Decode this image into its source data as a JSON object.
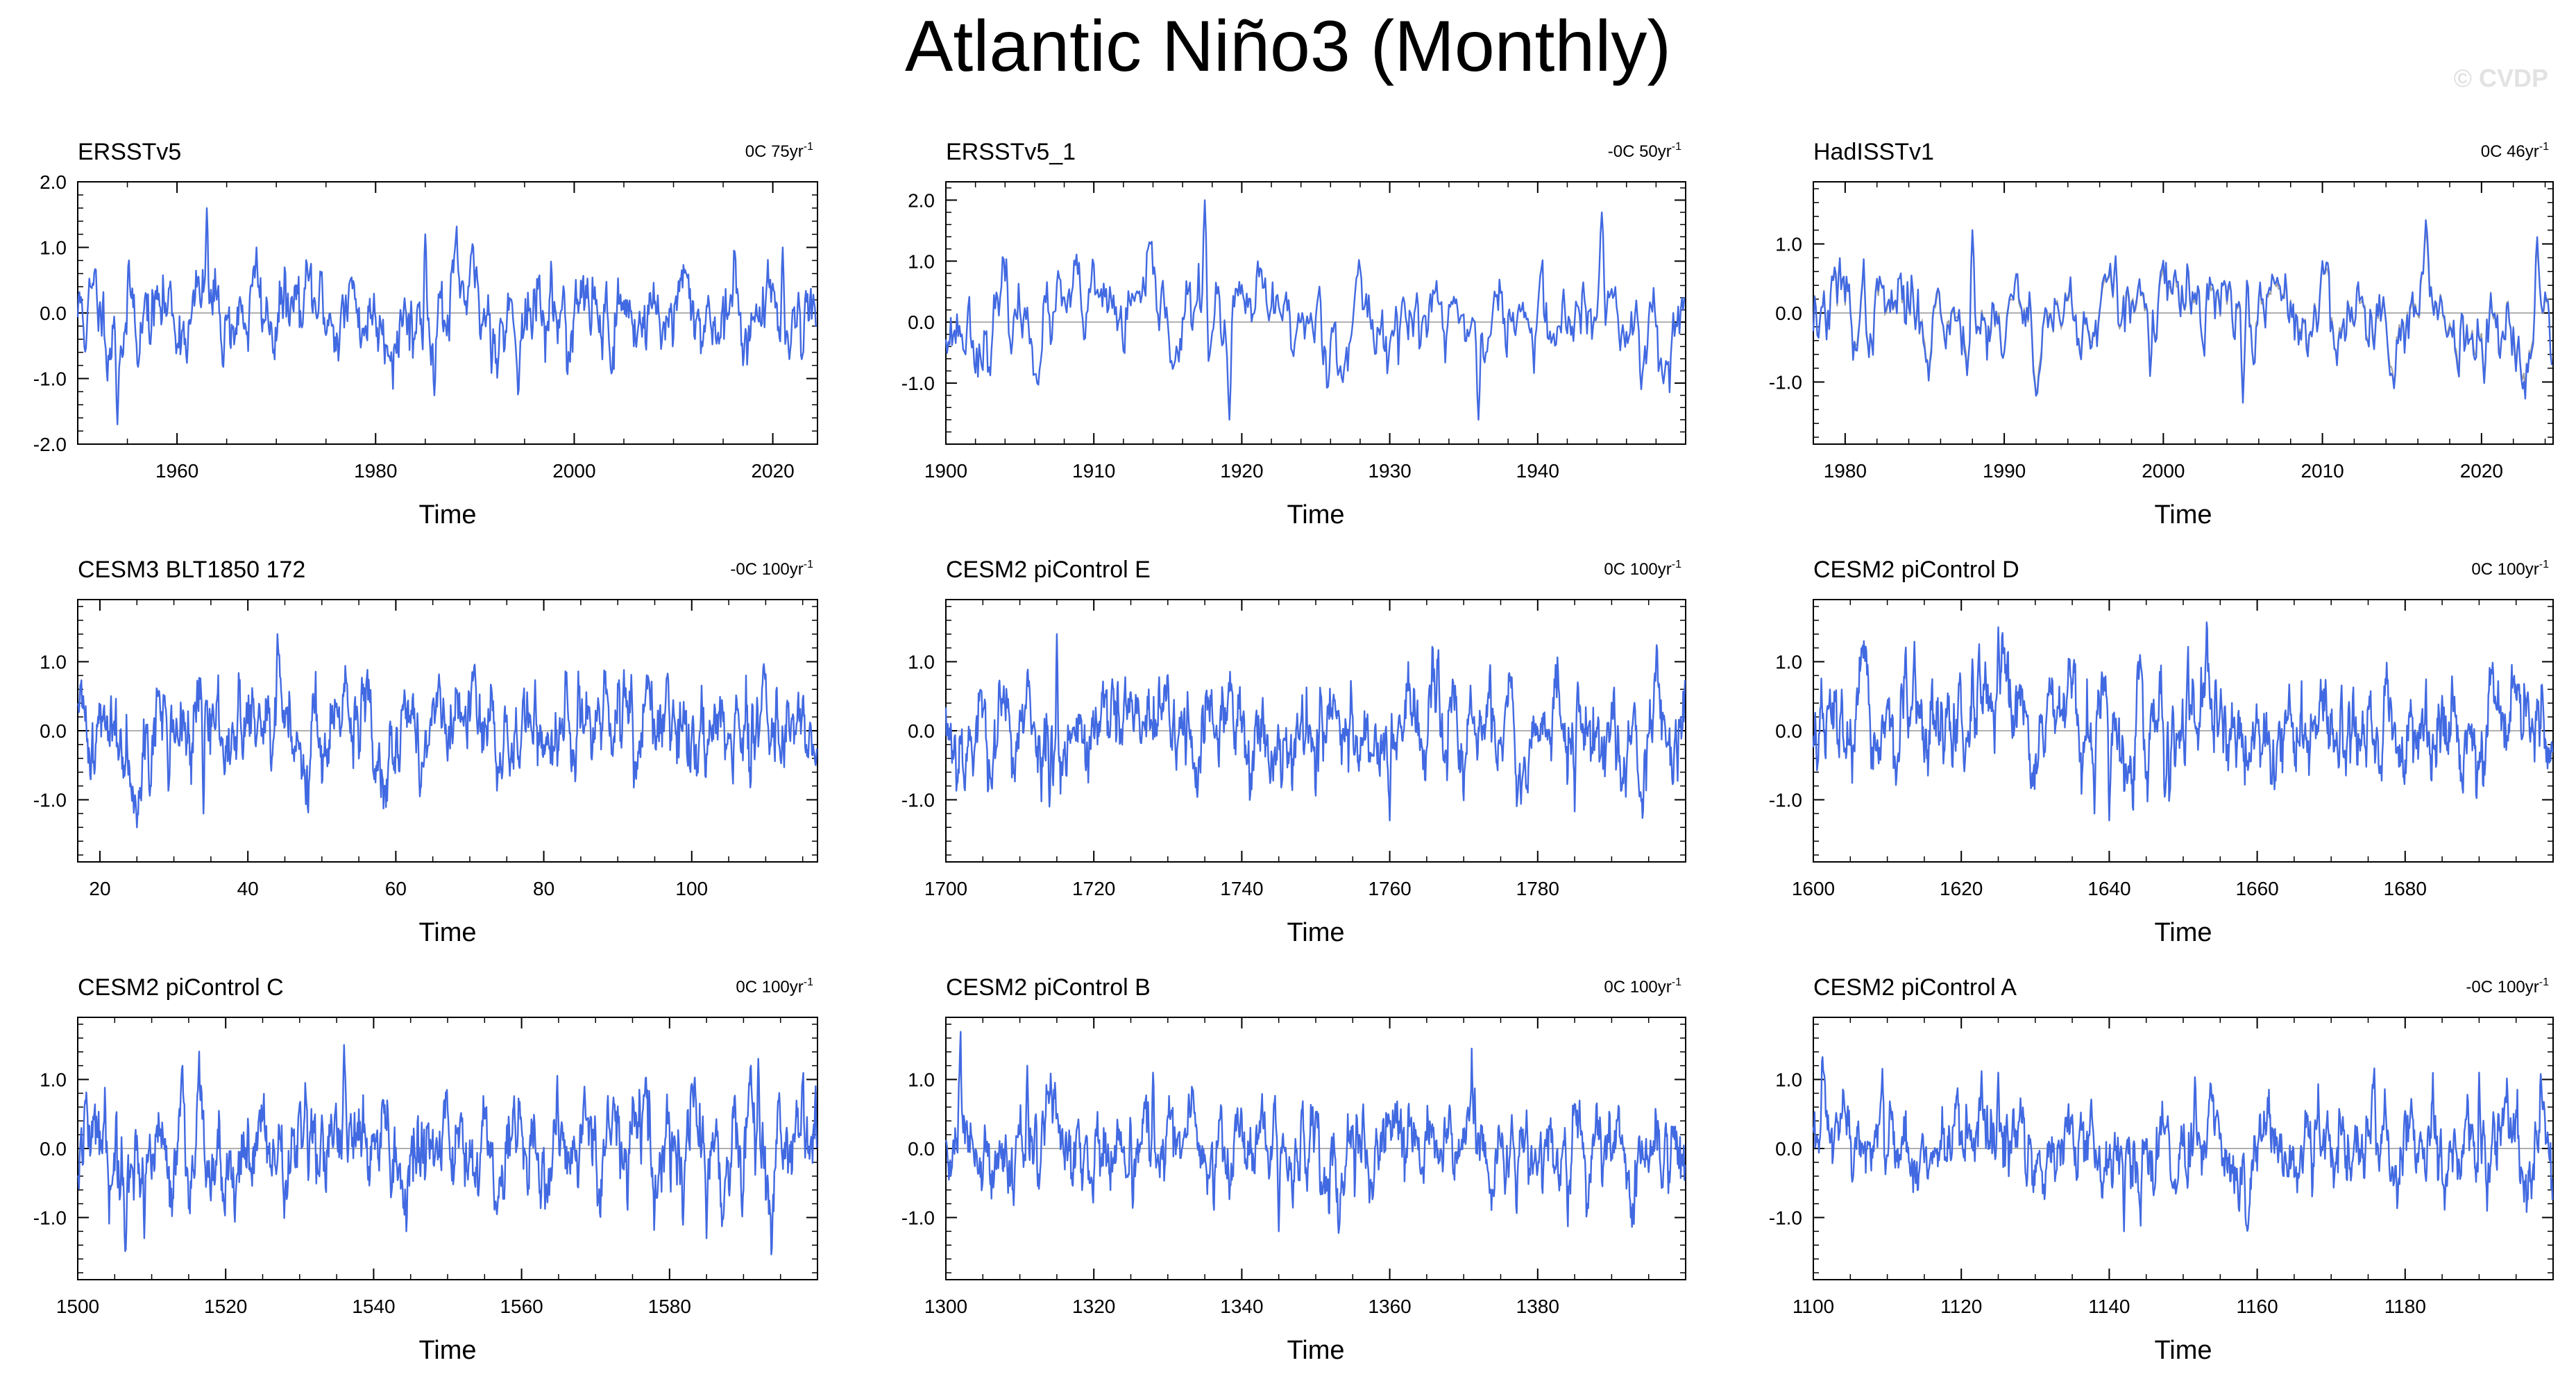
{
  "title": "Atlantic Niño3 (Monthly)",
  "watermark": "© CVDP",
  "colors": {
    "line": "#4169e1",
    "obs_overlay": "#a0a0a0",
    "axis": "#000000",
    "zero_line": "#b0b0b0"
  },
  "chart_data": [
    {
      "type": "line",
      "title": "ERSSTv5",
      "trend_label": "0C 75yr",
      "trend_exp": "-1",
      "xlabel": "Time",
      "ylabel": "",
      "xlim": [
        1950,
        2024.5
      ],
      "ylim": [
        -2.0,
        2.0
      ],
      "xticks": [
        1960,
        1980,
        2000,
        2020
      ],
      "xticklabels": [
        "1960",
        "1980",
        "2000",
        "2020"
      ],
      "yticks": [
        -2.0,
        -1.0,
        0.0,
        1.0,
        2.0
      ],
      "yticklabels": [
        "-2.0",
        "-1.0",
        "0.0",
        "1.0",
        "2.0"
      ],
      "amp": 0.42,
      "seed": 11,
      "series": [
        {
          "values_start": 1950,
          "values_step": 0.0833
        }
      ],
      "extremes": [
        [
          1963,
          1.6
        ],
        [
          1954,
          -1.7
        ],
        [
          1968,
          1.0
        ],
        [
          1985,
          1.2
        ],
        [
          2021,
          1.0
        ]
      ]
    },
    {
      "type": "line",
      "title": "ERSSTv5_1",
      "trend_label": "-0C 50yr",
      "trend_exp": "-1",
      "xlabel": "Time",
      "ylabel": "",
      "xlim": [
        1900,
        1950
      ],
      "ylim": [
        -2.0,
        2.3
      ],
      "xticks": [
        1900,
        1910,
        1920,
        1930,
        1940
      ],
      "xticklabels": [
        "1900",
        "1910",
        "1920",
        "1930",
        "1940"
      ],
      "yticks": [
        -1.0,
        0.0,
        1.0,
        2.0
      ],
      "yticklabels": [
        "-1.0",
        "0.0",
        "1.0",
        "2.0"
      ],
      "amp": 0.45,
      "seed": 23,
      "series": [
        {
          "values_start": 1900,
          "values_step": 0.0833
        }
      ],
      "extremes": [
        [
          1917.5,
          2.0
        ],
        [
          1919.2,
          -1.6
        ],
        [
          1944.3,
          1.8
        ],
        [
          1936,
          -1.6
        ],
        [
          1947,
          -1.1
        ]
      ]
    },
    {
      "type": "line",
      "title": "HadISSTv1",
      "trend_label": "0C 46yr",
      "trend_exp": "-1",
      "xlabel": "Time",
      "ylabel": "",
      "xlim": [
        1978,
        2024.5
      ],
      "ylim": [
        -1.9,
        1.9
      ],
      "xticks": [
        1980,
        1990,
        2000,
        2010,
        2020
      ],
      "xticklabels": [
        "1980",
        "1990",
        "2000",
        "2010",
        "2020"
      ],
      "yticks": [
        -1.0,
        0.0,
        1.0
      ],
      "yticklabels": [
        "-1.0",
        "0.0",
        "1.0"
      ],
      "amp": 0.42,
      "seed": 37,
      "overlay": true,
      "series": [
        {
          "values_start": 1978,
          "values_step": 0.0833
        }
      ],
      "extremes": [
        [
          1988,
          1.2
        ],
        [
          1992,
          -1.2
        ],
        [
          2005,
          -1.3
        ],
        [
          2023.5,
          1.1
        ]
      ]
    },
    {
      "type": "line",
      "title": "CESM3 BLT1850 172",
      "trend_label": "-0C 100yr",
      "trend_exp": "-1",
      "xlabel": "Time",
      "ylabel": "",
      "xlim": [
        17,
        117
      ],
      "ylim": [
        -1.9,
        1.9
      ],
      "xticks": [
        20,
        40,
        60,
        80,
        100
      ],
      "xticklabels": [
        "20",
        "40",
        "60",
        "80",
        "100"
      ],
      "yticks": [
        -1.0,
        0.0,
        1.0
      ],
      "yticklabels": [
        "-1.0",
        "0.0",
        "1.0"
      ],
      "amp": 0.42,
      "seed": 41,
      "series": [
        {
          "values_start": 17,
          "values_step": 0.0833
        }
      ],
      "extremes": [
        [
          25,
          -1.4
        ],
        [
          44,
          1.4
        ],
        [
          34,
          -1.2
        ]
      ]
    },
    {
      "type": "line",
      "title": "CESM2 piControl E",
      "trend_label": "0C 100yr",
      "trend_exp": "-1",
      "xlabel": "Time",
      "ylabel": "",
      "xlim": [
        1700,
        1800
      ],
      "ylim": [
        -1.9,
        1.9
      ],
      "xticks": [
        1720,
        1740,
        1760,
        1780
      ],
      "xticklabels": [
        "1700",
        "1720",
        "1740",
        "1760",
        "1780"
      ],
      "xticks_all": [
        1700,
        1720,
        1740,
        1760,
        1780
      ],
      "yticks": [
        -1.0,
        0.0,
        1.0
      ],
      "yticklabels": [
        "-1.0",
        "0.0",
        "1.0"
      ],
      "amp": 0.42,
      "seed": 53,
      "series": [
        {
          "values_start": 1700,
          "values_step": 0.0833
        }
      ],
      "extremes": [
        [
          1715,
          1.4
        ],
        [
          1760,
          -1.3
        ],
        [
          1714,
          -1.1
        ]
      ]
    },
    {
      "type": "line",
      "title": "CESM2 piControl D",
      "trend_label": "0C 100yr",
      "trend_exp": "-1",
      "xlabel": "Time",
      "ylabel": "",
      "xlim": [
        1600,
        1700
      ],
      "ylim": [
        -1.9,
        1.9
      ],
      "xticks_all": [
        1600,
        1620,
        1640,
        1660,
        1680
      ],
      "xticklabels": [
        "1600",
        "1620",
        "1640",
        "1660",
        "1680"
      ],
      "yticks": [
        -1.0,
        0.0,
        1.0
      ],
      "yticklabels": [
        "-1.0",
        "0.0",
        "1.0"
      ],
      "amp": 0.42,
      "seed": 67,
      "series": [
        {
          "values_start": 1600,
          "values_step": 0.0833
        }
      ],
      "extremes": [
        [
          1625,
          1.5
        ],
        [
          1640,
          -1.3
        ],
        [
          1638,
          -1.2
        ]
      ]
    },
    {
      "type": "line",
      "title": "CESM2 piControl C",
      "trend_label": "0C 100yr",
      "trend_exp": "-1",
      "xlabel": "Time",
      "ylabel": "",
      "xlim": [
        1500,
        1600
      ],
      "ylim": [
        -1.9,
        1.9
      ],
      "xticks_all": [
        1500,
        1520,
        1540,
        1560,
        1580
      ],
      "xticklabels": [
        "1500",
        "1520",
        "1540",
        "1560",
        "1580"
      ],
      "yticks": [
        -1.0,
        0.0,
        1.0
      ],
      "yticklabels": [
        "-1.0",
        "0.0",
        "1.0"
      ],
      "amp": 0.45,
      "seed": 79,
      "series": [
        {
          "values_start": 1500,
          "values_step": 0.0833
        }
      ],
      "extremes": [
        [
          1536,
          1.5
        ],
        [
          1509,
          -1.3
        ],
        [
          1585,
          -1.3
        ],
        [
          1592,
          1.3
        ]
      ]
    },
    {
      "type": "line",
      "title": "CESM2 piControl B",
      "trend_label": "0C 100yr",
      "trend_exp": "-1",
      "xlabel": "Time",
      "ylabel": "",
      "xlim": [
        1300,
        1400
      ],
      "ylim": [
        -1.9,
        1.9
      ],
      "xticks_all": [
        1300,
        1320,
        1340,
        1360,
        1380
      ],
      "xticklabels": [
        "1300",
        "1320",
        "1340",
        "1360",
        "1380"
      ],
      "yticks": [
        -1.0,
        0.0,
        1.0
      ],
      "yticklabels": [
        "-1.0",
        "0.0",
        "1.0"
      ],
      "amp": 0.38,
      "seed": 83,
      "series": [
        {
          "values_start": 1300,
          "values_step": 0.0833
        }
      ],
      "extremes": [
        [
          1311,
          1.2
        ],
        [
          1345,
          -1.2
        ],
        [
          1328,
          1.1
        ]
      ]
    },
    {
      "type": "line",
      "title": "CESM2 piControl A",
      "trend_label": "-0C 100yr",
      "trend_exp": "-1",
      "xlabel": "Time",
      "ylabel": "",
      "xlim": [
        1100,
        1200
      ],
      "ylim": [
        -1.9,
        1.9
      ],
      "xticks_all": [
        1100,
        1120,
        1140,
        1160,
        1180
      ],
      "xticklabels": [
        "1100",
        "1120",
        "1140",
        "1160",
        "1180"
      ],
      "yticks": [
        -1.0,
        0.0,
        1.0
      ],
      "yticklabels": [
        "-1.0",
        "0.0",
        "1.0"
      ],
      "amp": 0.38,
      "seed": 97,
      "series": [
        {
          "values_start": 1100,
          "values_step": 0.0833
        }
      ],
      "extremes": [
        [
          1142,
          -1.2
        ],
        [
          1125,
          1.1
        ],
        [
          1190,
          1.1
        ]
      ]
    }
  ]
}
